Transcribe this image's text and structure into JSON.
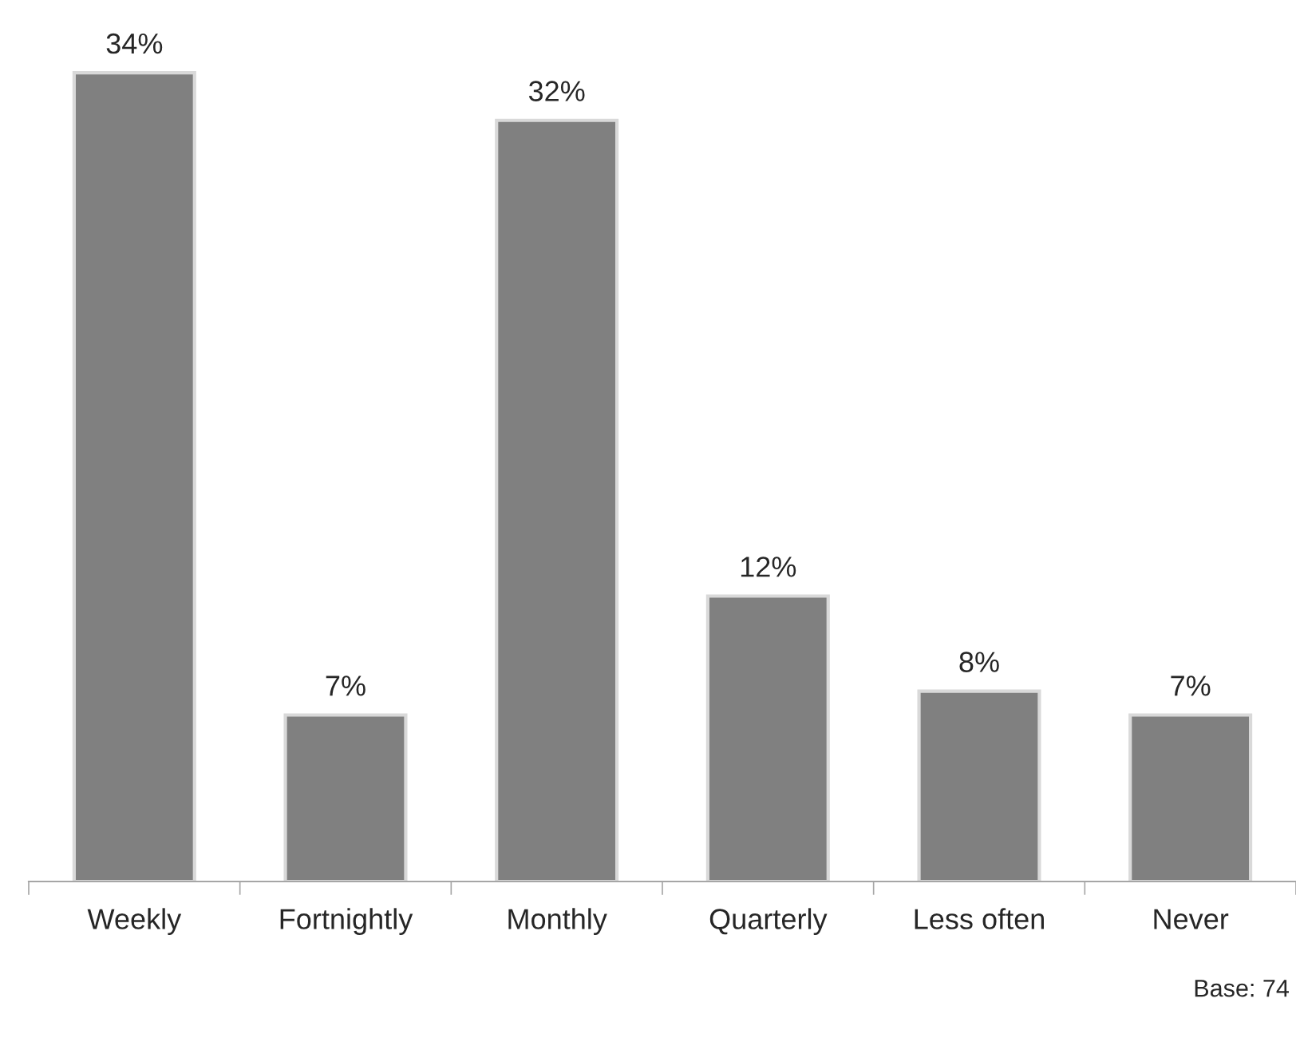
{
  "chart_data": {
    "type": "bar",
    "categories": [
      "Weekly",
      "Fortnightly",
      "Monthly",
      "Quarterly",
      "Less often",
      "Never"
    ],
    "values": [
      34,
      7,
      32,
      12,
      8,
      7
    ],
    "value_labels": [
      "34%",
      "7%",
      "32%",
      "12%",
      "8%",
      "7%"
    ],
    "color": "#808080",
    "annotations": [
      "Base: 74"
    ],
    "grid": false,
    "legend": false
  }
}
